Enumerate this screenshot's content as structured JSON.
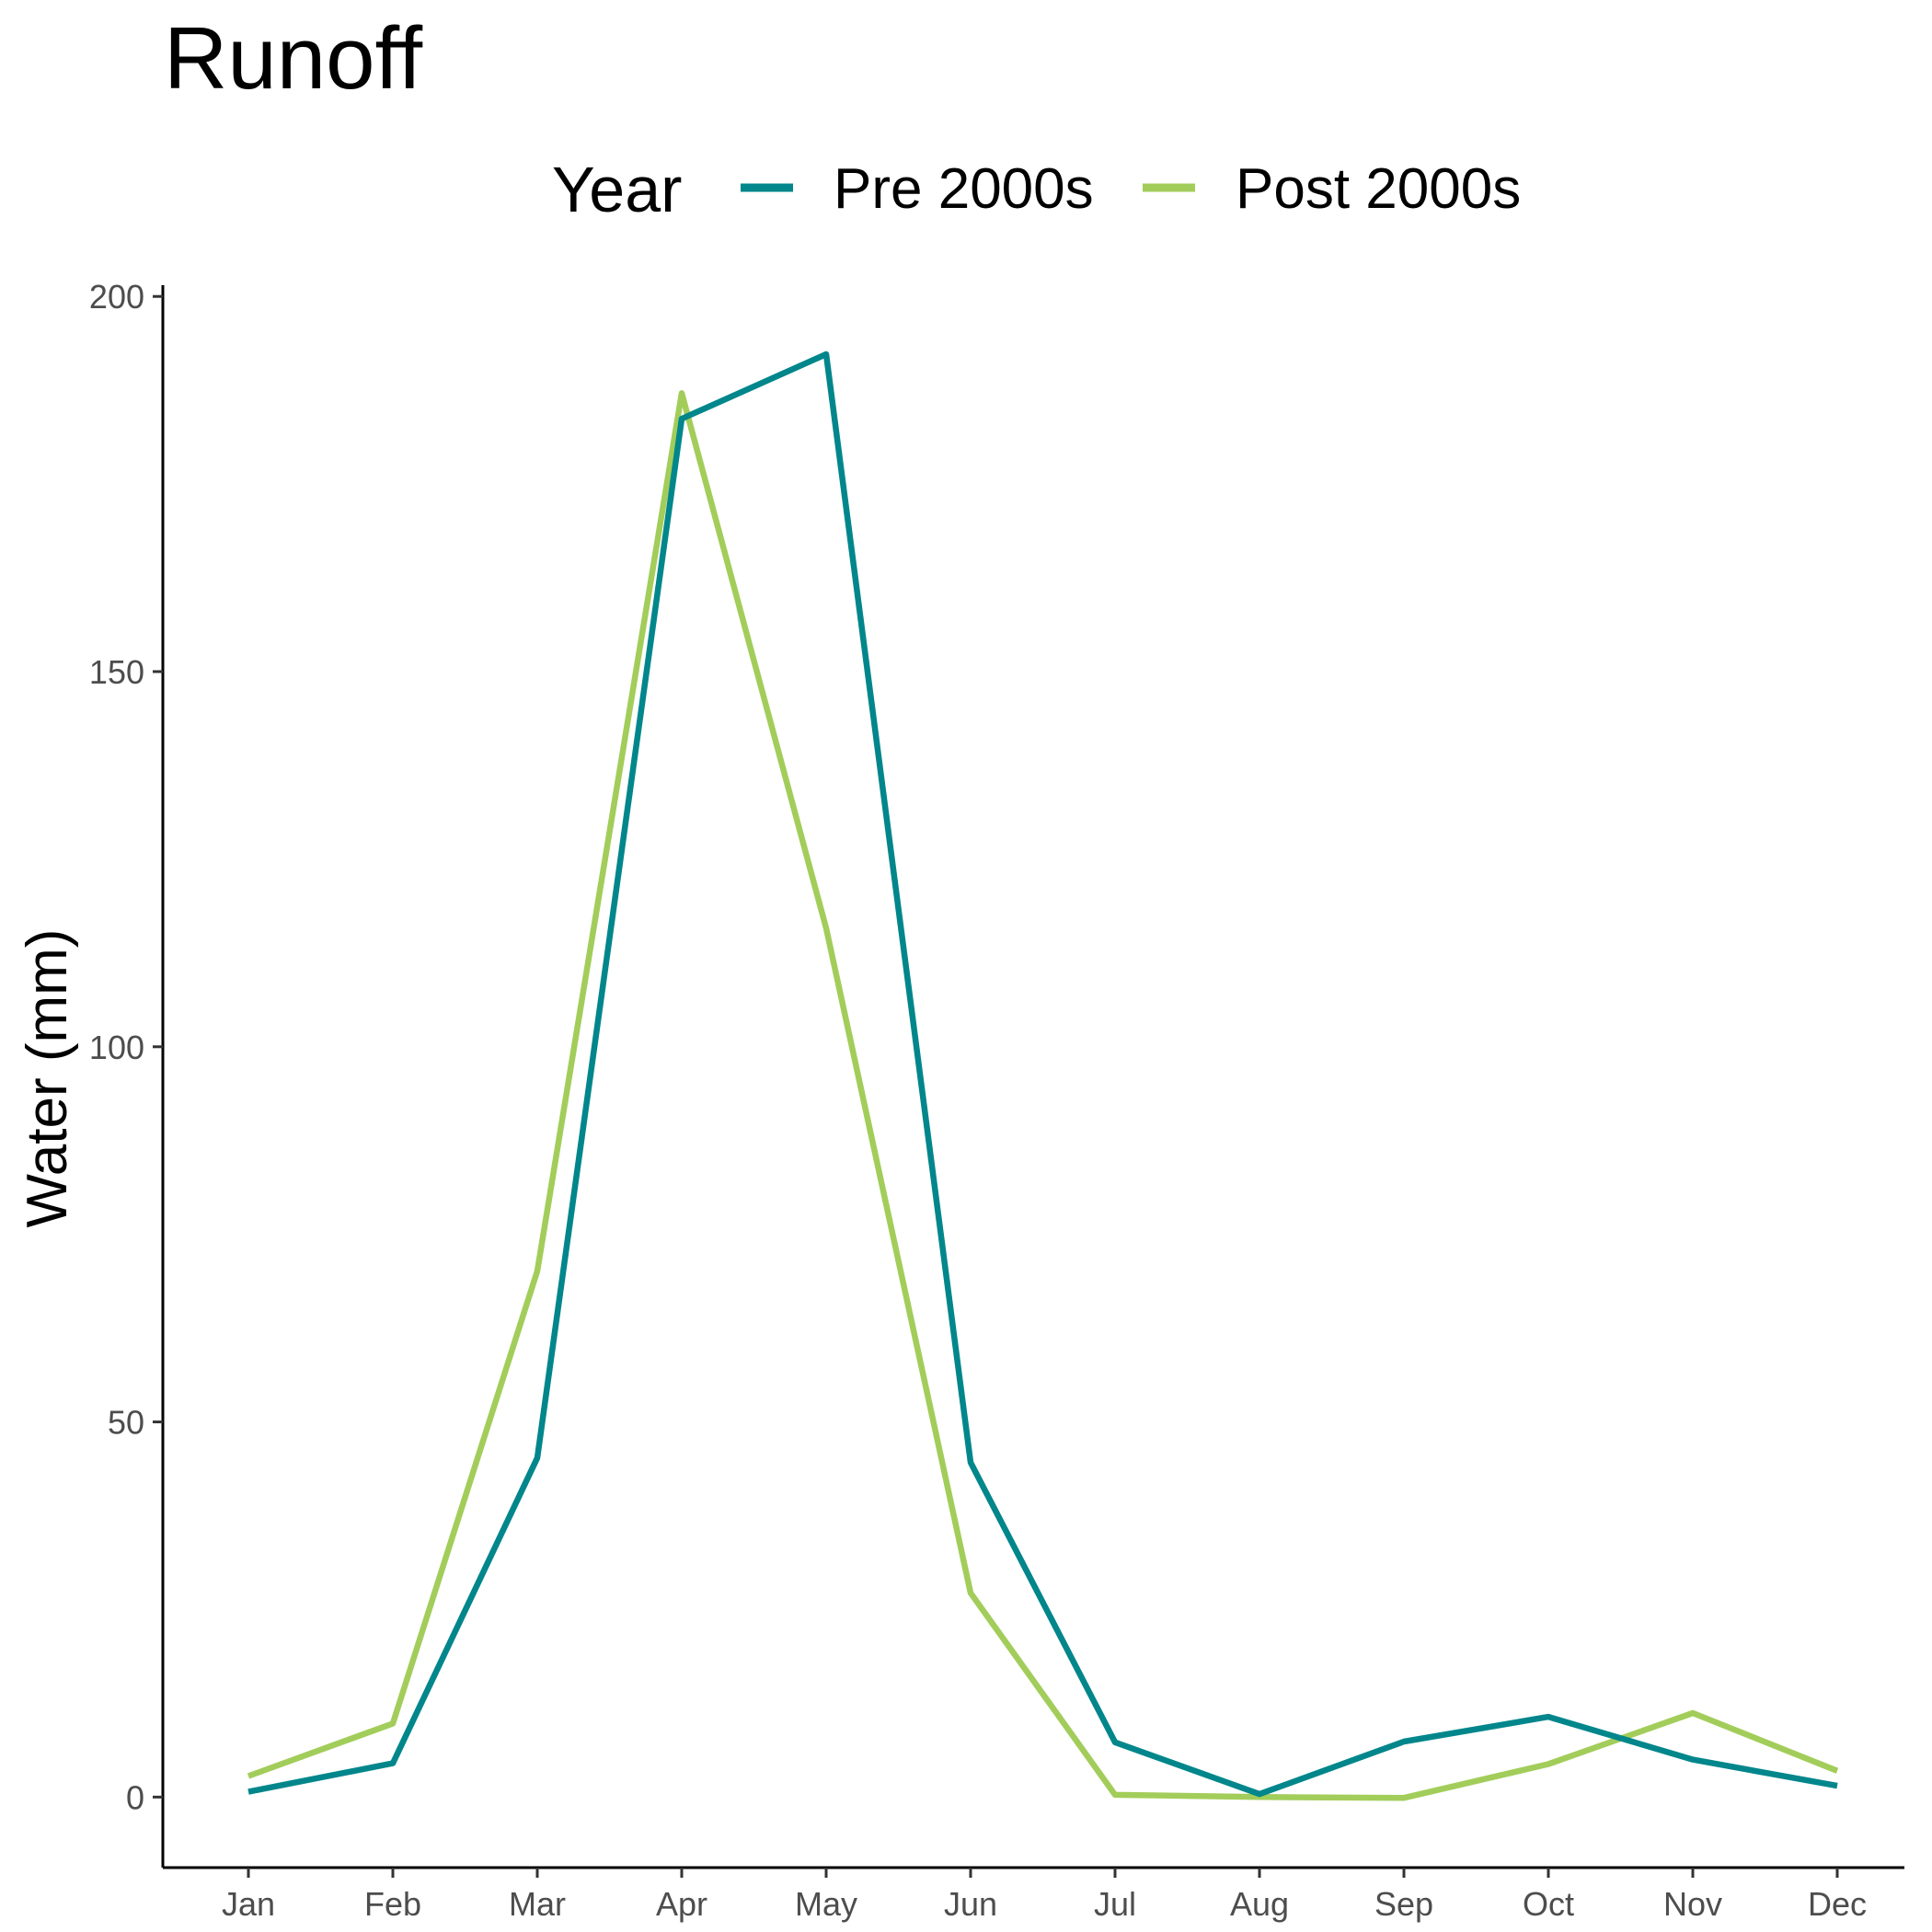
{
  "chart_data": {
    "type": "line",
    "title": "Runoff",
    "xlabel": "",
    "ylabel": "Water (mm)",
    "categories": [
      "Jan",
      "Feb",
      "Mar",
      "Apr",
      "May",
      "Jun",
      "Jul",
      "Aug",
      "Sep",
      "Oct",
      "Nov",
      "Dec"
    ],
    "ylim": [
      -9.4,
      201.5
    ],
    "yticks": [
      0,
      50,
      100,
      150,
      200
    ],
    "legend": {
      "title": "Year",
      "position": "top"
    },
    "grid": false,
    "series": [
      {
        "name": "Pre 2000s",
        "color": "#00868B",
        "values": [
          0.7,
          4.5,
          45.2,
          183.7,
          192.3,
          44.6,
          7.3,
          0.4,
          7.4,
          10.7,
          5.0,
          1.5
        ]
      },
      {
        "name": "Post 2000s",
        "color": "#A2CD5A",
        "values": [
          2.8,
          9.8,
          70.1,
          187.1,
          115.8,
          27.2,
          0.3,
          0.0,
          -0.1,
          4.4,
          11.2,
          3.5
        ]
      }
    ]
  }
}
